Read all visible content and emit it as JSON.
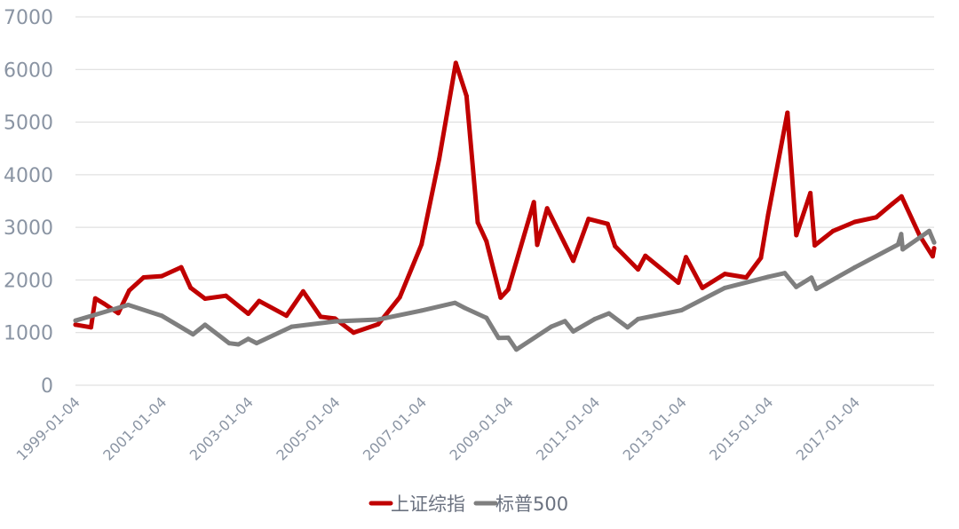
{
  "chart_data": {
    "type": "line",
    "title": "",
    "xlabel": "",
    "ylabel": "",
    "ylim": [
      0,
      7000
    ],
    "yticks": [
      0,
      1000,
      2000,
      3000,
      4000,
      5000,
      6000,
      7000
    ],
    "xlim": [
      "1999-01-04",
      "2018-10-31"
    ],
    "xticks": [
      "1999-01-04",
      "2001-01-04",
      "2003-01-04",
      "2005-01-04",
      "2007-01-04",
      "2009-01-04",
      "2011-01-04",
      "2013-01-04",
      "2015-01-04",
      "2017-01-04"
    ],
    "grid": "horizontal",
    "legend": "bottom",
    "series": [
      {
        "name": "上证综指",
        "color": "#c00000",
        "points": [
          [
            "1999-01-04",
            1150
          ],
          [
            "1999-05-15",
            1100
          ],
          [
            "1999-06-20",
            1650
          ],
          [
            "1999-09-01",
            1550
          ],
          [
            "1999-12-31",
            1370
          ],
          [
            "2000-04-01",
            1800
          ],
          [
            "2000-08-01",
            2050
          ],
          [
            "2000-12-31",
            2073
          ],
          [
            "2001-06-14",
            2242
          ],
          [
            "2001-09-01",
            1850
          ],
          [
            "2001-12-31",
            1645
          ],
          [
            "2002-06-25",
            1700
          ],
          [
            "2002-12-31",
            1357
          ],
          [
            "2003-04-01",
            1600
          ],
          [
            "2003-11-18",
            1320
          ],
          [
            "2004-04-07",
            1783
          ],
          [
            "2004-09-01",
            1300
          ],
          [
            "2004-12-31",
            1266
          ],
          [
            "2005-06-06",
            998
          ],
          [
            "2005-12-31",
            1161
          ],
          [
            "2006-06-30",
            1672
          ],
          [
            "2006-12-31",
            2675
          ],
          [
            "2007-05-29",
            4300
          ],
          [
            "2007-10-16",
            6124
          ],
          [
            "2008-01-14",
            5497
          ],
          [
            "2008-04-18",
            3094
          ],
          [
            "2008-06-30",
            2736
          ],
          [
            "2008-10-28",
            1665
          ],
          [
            "2008-12-31",
            1821
          ],
          [
            "2009-08-04",
            3478
          ],
          [
            "2009-09-01",
            2667
          ],
          [
            "2009-11-24",
            3361
          ],
          [
            "2010-07-02",
            2363
          ],
          [
            "2010-11-08",
            3159
          ],
          [
            "2011-04-18",
            3067
          ],
          [
            "2011-06-20",
            2642
          ],
          [
            "2011-12-31",
            2199
          ],
          [
            "2012-03-01",
            2460
          ],
          [
            "2012-12-04",
            1949
          ],
          [
            "2013-02-06",
            2434
          ],
          [
            "2013-06-25",
            1849
          ],
          [
            "2013-12-31",
            2116
          ],
          [
            "2014-06-30",
            2048
          ],
          [
            "2014-10-31",
            2420
          ],
          [
            "2014-12-31",
            3235
          ],
          [
            "2015-06-12",
            5178
          ],
          [
            "2015-08-26",
            2850
          ],
          [
            "2015-12-22",
            3651
          ],
          [
            "2016-01-28",
            2656
          ],
          [
            "2016-06-30",
            2930
          ],
          [
            "2016-12-31",
            3104
          ],
          [
            "2017-06-30",
            3192
          ],
          [
            "2017-11-13",
            3447
          ],
          [
            "2018-01-29",
            3587
          ],
          [
            "2018-06-30",
            2847
          ],
          [
            "2018-10-19",
            2449
          ],
          [
            "2018-10-31",
            2603
          ]
        ]
      },
      {
        "name": "标普500",
        "color": "#7f7f7f",
        "points": [
          [
            "1999-01-04",
            1228
          ],
          [
            "1999-12-31",
            1469
          ],
          [
            "2000-03-24",
            1527
          ],
          [
            "2000-12-31",
            1320
          ],
          [
            "2001-09-21",
            966
          ],
          [
            "2001-12-31",
            1148
          ],
          [
            "2002-07-23",
            797
          ],
          [
            "2002-10-09",
            776
          ],
          [
            "2002-12-31",
            880
          ],
          [
            "2003-03-11",
            800
          ],
          [
            "2003-12-31",
            1112
          ],
          [
            "2004-12-31",
            1212
          ],
          [
            "2005-12-31",
            1248
          ],
          [
            "2006-12-31",
            1418
          ],
          [
            "2007-10-09",
            1565
          ],
          [
            "2007-12-31",
            1468
          ],
          [
            "2008-06-30",
            1280
          ],
          [
            "2008-10-10",
            899
          ],
          [
            "2008-12-31",
            903
          ],
          [
            "2009-03-09",
            677
          ],
          [
            "2009-12-31",
            1115
          ],
          [
            "2010-04-23",
            1217
          ],
          [
            "2010-07-02",
            1022
          ],
          [
            "2010-12-31",
            1258
          ],
          [
            "2011-04-29",
            1364
          ],
          [
            "2011-10-03",
            1099
          ],
          [
            "2011-12-31",
            1258
          ],
          [
            "2012-12-31",
            1426
          ],
          [
            "2013-12-31",
            1848
          ],
          [
            "2014-12-31",
            2059
          ],
          [
            "2015-05-21",
            2131
          ],
          [
            "2015-08-25",
            1867
          ],
          [
            "2015-12-31",
            2044
          ],
          [
            "2016-02-11",
            1829
          ],
          [
            "2016-12-31",
            2239
          ],
          [
            "2017-12-31",
            2674
          ],
          [
            "2018-01-26",
            2873
          ],
          [
            "2018-02-08",
            2581
          ],
          [
            "2018-09-20",
            2931
          ],
          [
            "2018-10-31",
            2712
          ]
        ]
      }
    ]
  }
}
